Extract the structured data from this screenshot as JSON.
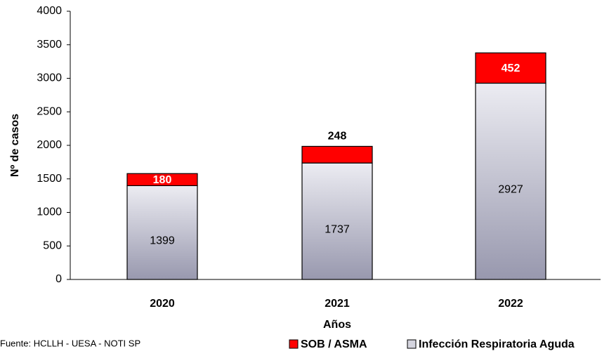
{
  "chart_data": {
    "type": "stacked-bar",
    "categories": [
      "2020",
      "2021",
      "2022"
    ],
    "series": [
      {
        "name": "Infección Respiratoria Aguda",
        "color": "#c9c9d6",
        "values": [
          1399,
          1737,
          2927
        ]
      },
      {
        "name": "SOB / ASMA",
        "color": "#ff0000",
        "values": [
          180,
          248,
          452
        ]
      }
    ],
    "ylim": [
      0,
      4000
    ],
    "yticks": [
      0,
      500,
      1000,
      1500,
      2000,
      2500,
      3000,
      3500,
      4000
    ],
    "ylabel": "Nº de casos",
    "xlabel": "Años",
    "source": "Fuente: HCLLH - UESA - NOTI SP",
    "grid": false
  }
}
